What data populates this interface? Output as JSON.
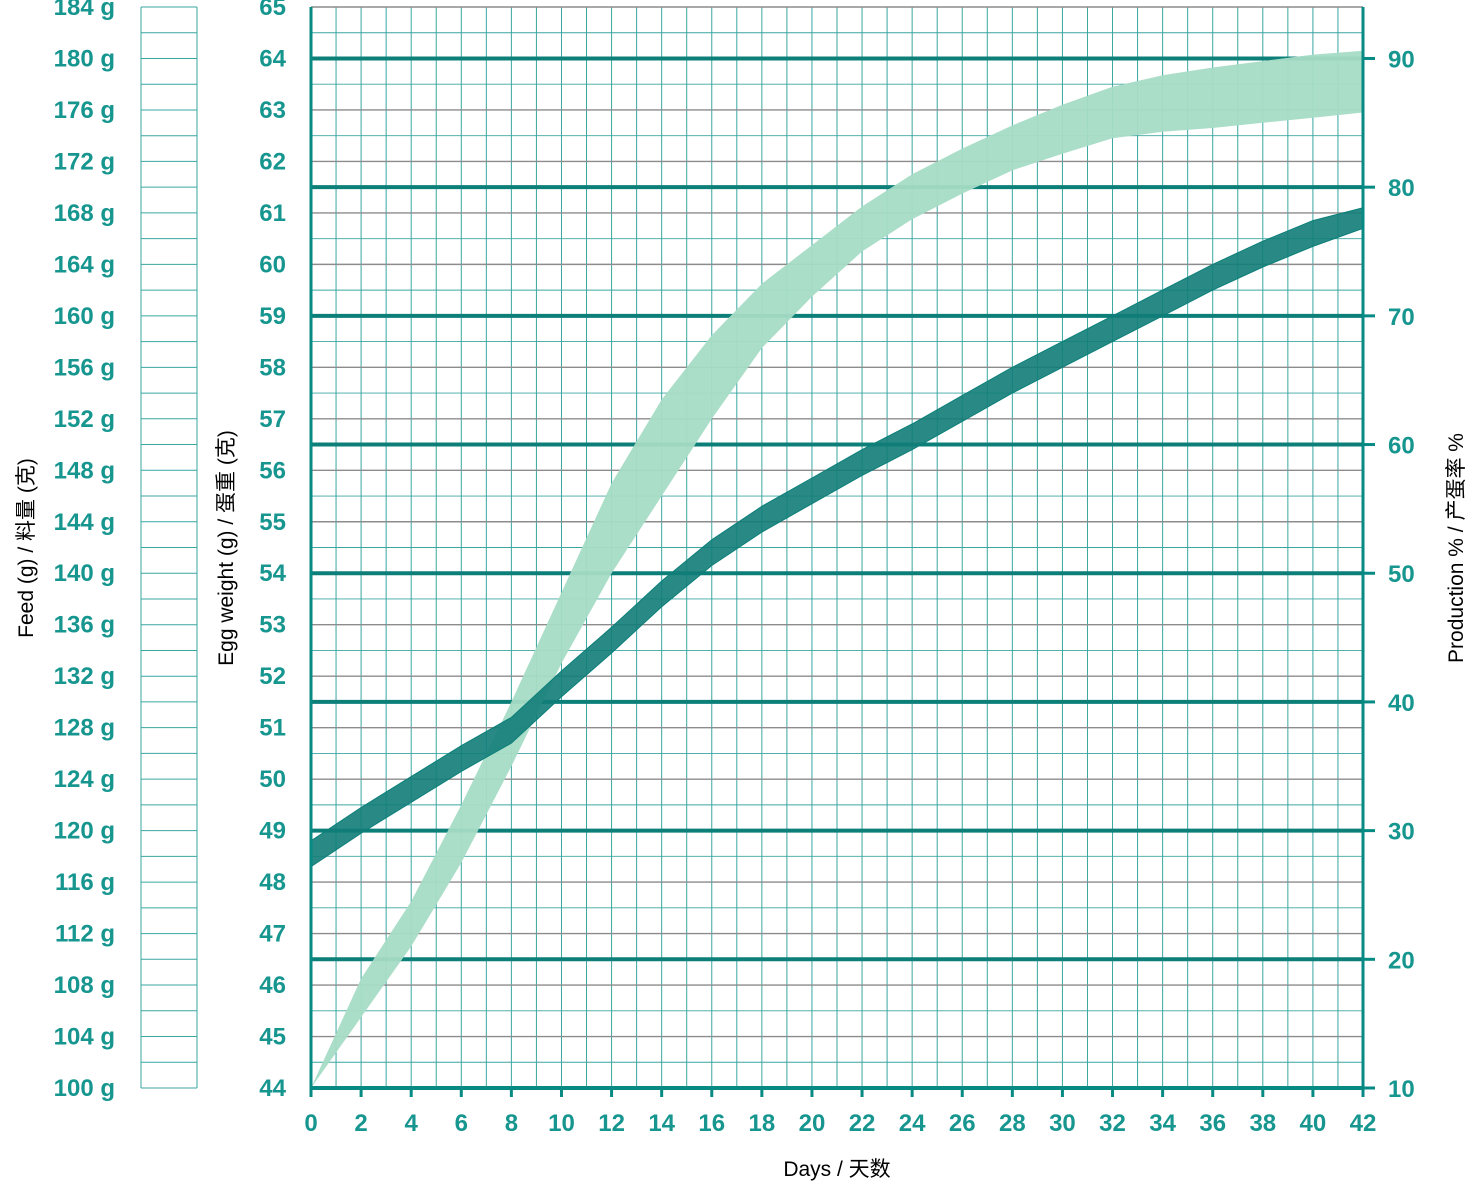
{
  "colors": {
    "teal": "#078a84",
    "teal_dark": "#0c7f79",
    "tick_text": "#17968f",
    "grid_minor": "#3aa6a0",
    "grid_major_gray": "#8c8c8c",
    "production_band": "#a7dcc5",
    "egg_weight_band": "#127d78"
  },
  "chart_data": {
    "type": "area",
    "grid": true,
    "x_axis": {
      "label": "Days / 天数",
      "range": [
        0,
        42
      ],
      "ticks": [
        "0",
        "2",
        "4",
        "6",
        "8",
        "10",
        "12",
        "14",
        "16",
        "18",
        "20",
        "22",
        "24",
        "26",
        "28",
        "30",
        "32",
        "34",
        "36",
        "38",
        "40",
        "42"
      ]
    },
    "y_axis_egg_weight": {
      "label": "Egg weight (g) / 蛋重 (克)",
      "range": [
        44,
        65
      ],
      "ticks": [
        "44",
        "45",
        "46",
        "47",
        "48",
        "49",
        "50",
        "51",
        "52",
        "53",
        "54",
        "55",
        "56",
        "57",
        "58",
        "59",
        "60",
        "61",
        "62",
        "63",
        "64",
        "65"
      ]
    },
    "y_axis_production": {
      "label": "Production % / 产蛋率 %",
      "range": [
        10,
        93.3
      ],
      "ticks": [
        "10",
        "20",
        "30",
        "40",
        "50",
        "60",
        "70",
        "80",
        "90"
      ]
    },
    "y_axis_feed": {
      "label": "Feed (g) / 料量 (克)",
      "range": [
        100,
        184
      ],
      "ticks": [
        "100 g",
        "104 g",
        "108 g",
        "112 g",
        "116 g",
        "120 g",
        "124 g",
        "128 g",
        "132 g",
        "136 g",
        "140 g",
        "144 g",
        "148 g",
        "152 g",
        "156 g",
        "160 g",
        "164 g",
        "168 g",
        "172 g",
        "176 g",
        "180 g",
        "184 g"
      ]
    },
    "series": [
      {
        "axis": "production",
        "style": "band",
        "x": [
          0,
          2,
          4,
          6,
          8,
          10,
          12,
          14,
          16,
          18,
          20,
          22,
          24,
          26,
          28,
          30,
          32,
          34,
          36,
          38,
          40,
          42
        ],
        "lower": [
          10,
          15.5,
          21,
          27.5,
          35,
          43,
          50,
          56,
          62,
          67.5,
          71.5,
          75,
          77.5,
          79.5,
          81.3,
          82.6,
          83.8,
          84.3,
          84.6,
          85,
          85.4,
          85.8
        ],
        "upper": [
          10,
          18.5,
          24.5,
          32,
          40,
          48.5,
          57,
          63.5,
          68.5,
          72.5,
          75.5,
          78.5,
          81,
          83,
          84.8,
          86.4,
          87.8,
          88.7,
          89.3,
          89.8,
          90.3,
          90.6
        ]
      },
      {
        "axis": "egg_weight",
        "style": "band",
        "x": [
          0,
          2,
          4,
          6,
          8,
          10,
          12,
          14,
          16,
          18,
          20,
          22,
          24,
          26,
          28,
          30,
          32,
          34,
          36,
          38,
          40,
          42
        ],
        "lower": [
          48.3,
          48.95,
          49.55,
          50.15,
          50.7,
          51.6,
          52.45,
          53.35,
          54.15,
          54.8,
          55.35,
          55.9,
          56.4,
          56.95,
          57.5,
          58,
          58.5,
          59,
          59.5,
          59.95,
          60.35,
          60.7
        ],
        "upper": [
          48.8,
          49.45,
          50.05,
          50.65,
          51.2,
          52.1,
          52.95,
          53.85,
          54.65,
          55.3,
          55.85,
          56.4,
          56.9,
          57.45,
          58,
          58.5,
          59,
          59.5,
          60,
          60.45,
          60.85,
          61.1
        ]
      }
    ]
  }
}
